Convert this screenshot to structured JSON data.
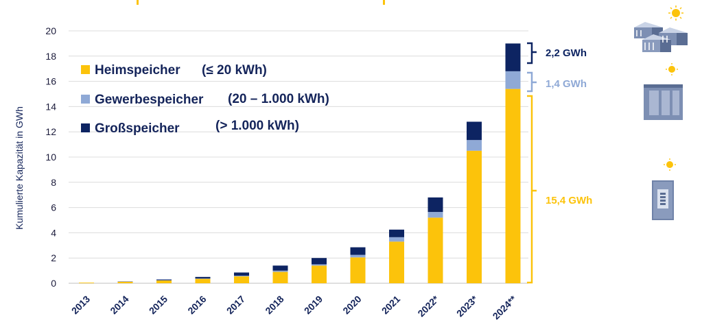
{
  "chart_data": {
    "type": "bar",
    "stacked": true,
    "ylabel": "Kumulierte Kapazität in GWh",
    "ylim": [
      0,
      20
    ],
    "yticks": [
      "0",
      "2",
      "4",
      "6",
      "8",
      "10",
      "12",
      "14",
      "16",
      "18",
      "20"
    ],
    "grid": true,
    "legend_position": "top-left",
    "categories": [
      "2013",
      "2014",
      "2015",
      "2016",
      "2017",
      "2018",
      "2019",
      "2020",
      "2021",
      "2022*",
      "2023*",
      "2024**"
    ],
    "series": [
      {
        "name": "Heimspeicher",
        "range": "(≤ 20 kWh)",
        "color": "#fcc30b",
        "values": [
          0.05,
          0.12,
          0.22,
          0.35,
          0.55,
          0.9,
          1.4,
          2.05,
          3.3,
          5.2,
          10.5,
          15.4
        ]
      },
      {
        "name": "Gewerbespeicher",
        "range": "(20 – 1.000 kWh)",
        "color": "#8fa9d6",
        "values": [
          0.0,
          0.0,
          0.02,
          0.03,
          0.05,
          0.1,
          0.1,
          0.2,
          0.35,
          0.45,
          0.85,
          1.4
        ]
      },
      {
        "name": "Großspeicher",
        "range": "(> 1.000 kWh)",
        "color": "#0d2462",
        "values": [
          0.0,
          0.02,
          0.06,
          0.12,
          0.25,
          0.4,
          0.5,
          0.6,
          0.6,
          1.15,
          1.45,
          2.2
        ]
      }
    ],
    "annotations": [
      {
        "text": "2,2 GWh",
        "series": "Großspeicher",
        "color": "#0d2462"
      },
      {
        "text": "1,4 GWh",
        "series": "Gewerbespeicher",
        "color": "#8fa9d6"
      },
      {
        "text": "15,4 GWh",
        "series": "Heimspeicher",
        "color": "#fcc30b"
      }
    ],
    "icons": [
      "large-storage-container-icon",
      "commercial-storage-cabinet-icon",
      "home-battery-icon",
      "sun-icon"
    ]
  }
}
